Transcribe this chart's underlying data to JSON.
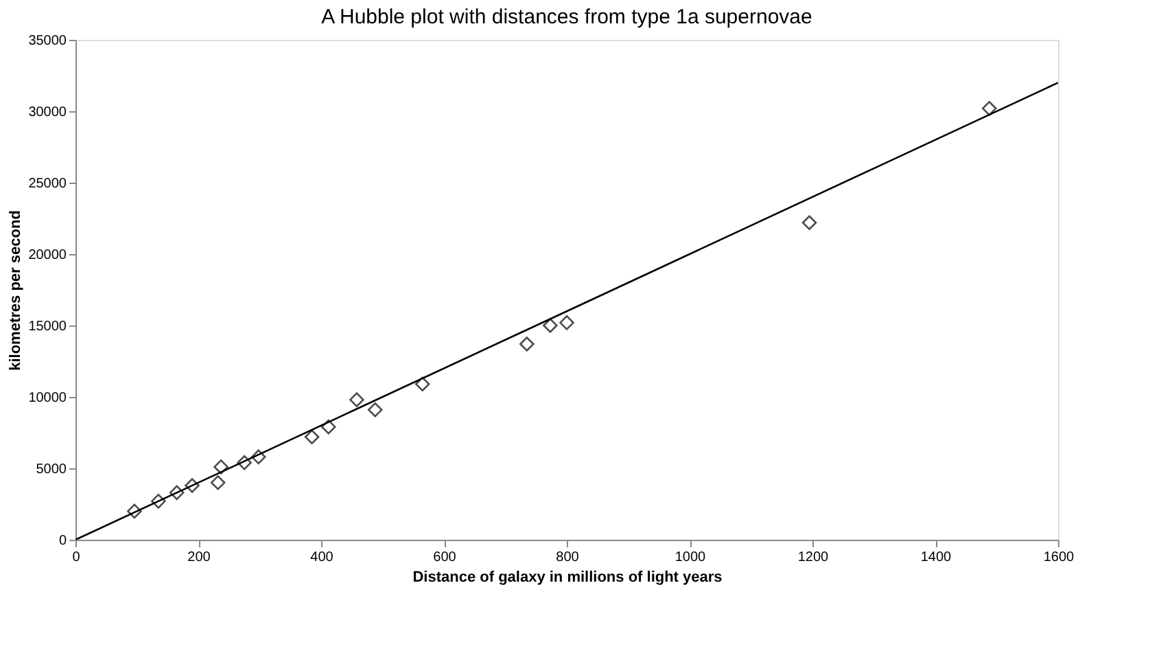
{
  "chart_data": {
    "type": "scatter",
    "title": "A Hubble plot with distances from type 1a supernovae",
    "xlabel": "Distance of galaxy in millions of light years",
    "ylabel": "kilometres per second",
    "xlim": [
      0,
      1600
    ],
    "xticks": [
      0,
      200,
      400,
      600,
      800,
      1000,
      1200,
      1400,
      1600
    ],
    "ylim": [
      0,
      35000
    ],
    "yticks": [
      0,
      5000,
      10000,
      15000,
      20000,
      25000,
      30000,
      35000
    ],
    "grid": false,
    "series": [
      {
        "marker": "diamond",
        "color": "#000000",
        "x": [
          96,
          135,
          165,
          190,
          232,
          237,
          275,
          298,
          385,
          412,
          458,
          488,
          565,
          735,
          773,
          800,
          1195,
          1488
        ],
        "values": [
          2000,
          2700,
          3300,
          3800,
          4000,
          5100,
          5400,
          5800,
          7200,
          7900,
          9800,
          9100,
          10900,
          13700,
          15000,
          15200,
          22200,
          30200
        ]
      },
      {
        "type": "line",
        "line_style": "solid",
        "color": "#000000",
        "x": [
          0,
          1600
        ],
        "values": [
          0,
          32000
        ]
      }
    ]
  }
}
